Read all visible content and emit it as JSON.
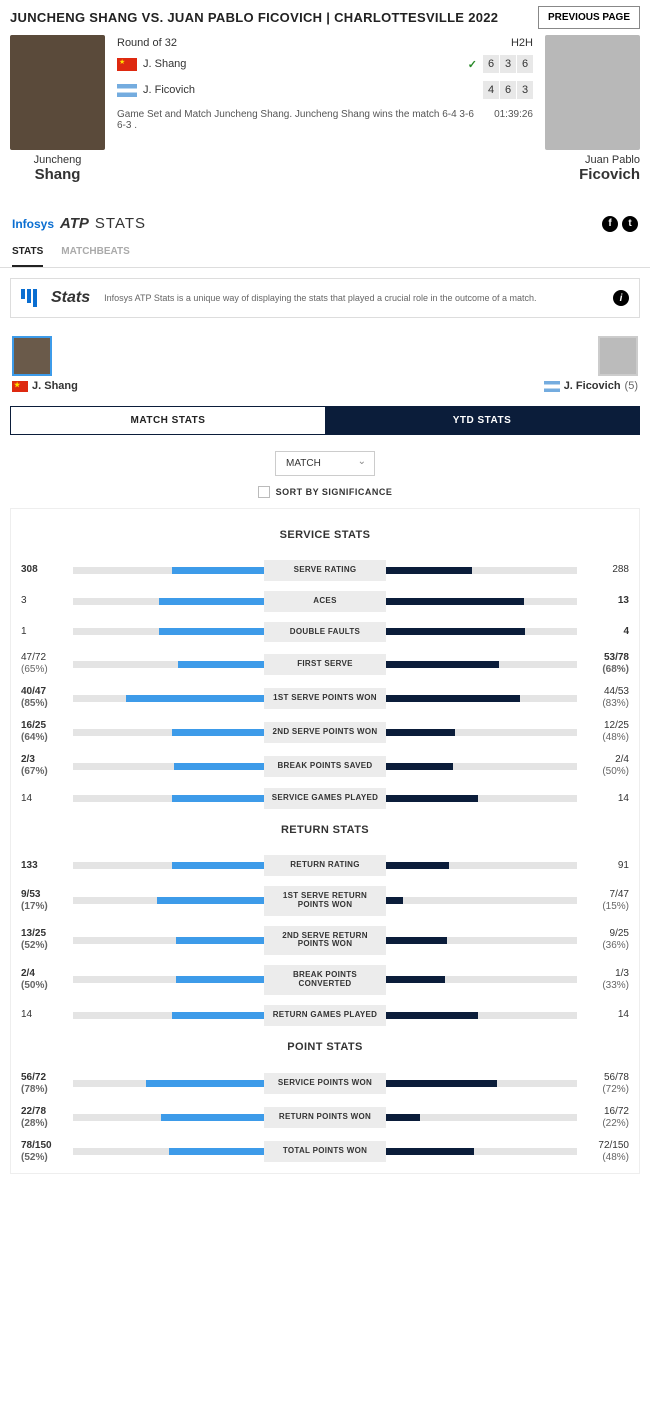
{
  "header": {
    "title": "JUNCHENG SHANG VS. JUAN PABLO FICOVICH | CHARLOTTESVILLE 2022",
    "prev_button": "PREVIOUS PAGE"
  },
  "players": {
    "p1": {
      "first": "Juncheng",
      "last": "Shang",
      "short": "J. Shang",
      "flag": "cn"
    },
    "p2": {
      "first": "Juan Pablo",
      "last": "Ficovich",
      "short": "J. Ficovich",
      "flag": "ar",
      "seed": "(5)"
    }
  },
  "scoreboard": {
    "round": "Round of 32",
    "h2h": "H2H",
    "p1_sets": [
      "6",
      "3",
      "6"
    ],
    "p2_sets": [
      "4",
      "6",
      "3"
    ],
    "winner": "p1",
    "message": "Game Set and Match Juncheng Shang. Juncheng Shang wins the match 6-4 3-6 6-3 .",
    "duration": "01:39:26"
  },
  "brand": {
    "infosys": "Infosys",
    "atp": "ATP",
    "stats": "STATS"
  },
  "tabs": {
    "stats": "STATS",
    "matchbeats": "MATCHBEATS"
  },
  "banner": {
    "logo": "Stats",
    "text": "Infosys ATP Stats is a unique way of displaying the stats that played a crucial role in the outcome of a match."
  },
  "toggle": {
    "match": "MATCH STATS",
    "ytd": "YTD STATS"
  },
  "controls": {
    "dropdown": "MATCH",
    "sort": "SORT BY SIGNIFICANCE"
  },
  "colors": {
    "p1_bar": "#3d9be9",
    "p2_bar": "#0b1d3a",
    "track": "#e4e4e4",
    "label_bg": "#ececec"
  },
  "groups": [
    {
      "title": "SERVICE STATS",
      "rows": [
        {
          "label": "SERVE RATING",
          "l_val": "308",
          "r_val": "288",
          "l_pct": 48,
          "r_pct": 45,
          "bold": "l"
        },
        {
          "label": "ACES",
          "l_val": "3",
          "r_val": "13",
          "l_pct": 55,
          "r_pct": 72,
          "bold": "r"
        },
        {
          "label": "DOUBLE FAULTS",
          "l_val": "1",
          "r_val": "4",
          "l_pct": 55,
          "r_pct": 73,
          "bold": "r"
        },
        {
          "label": "FIRST SERVE",
          "l_val": "47/72",
          "l_sub": "(65%)",
          "r_val": "53/78",
          "r_sub": "(68%)",
          "l_pct": 45,
          "r_pct": 59,
          "bold": "r"
        },
        {
          "label": "1ST SERVE POINTS WON",
          "l_val": "40/47",
          "l_sub": "(85%)",
          "r_val": "44/53",
          "r_sub": "(83%)",
          "l_pct": 72,
          "r_pct": 70,
          "bold": "l"
        },
        {
          "label": "2ND SERVE POINTS WON",
          "l_val": "16/25",
          "l_sub": "(64%)",
          "r_val": "12/25",
          "r_sub": "(48%)",
          "l_pct": 48,
          "r_pct": 36,
          "bold": "l"
        },
        {
          "label": "BREAK POINTS SAVED",
          "l_val": "2/3",
          "l_sub": "(67%)",
          "r_val": "2/4",
          "r_sub": "(50%)",
          "l_pct": 47,
          "r_pct": 35,
          "bold": "l"
        },
        {
          "label": "SERVICE GAMES PLAYED",
          "l_val": "14",
          "r_val": "14",
          "l_pct": 48,
          "r_pct": 48
        }
      ]
    },
    {
      "title": "RETURN STATS",
      "rows": [
        {
          "label": "RETURN RATING",
          "l_val": "133",
          "r_val": "91",
          "l_pct": 48,
          "r_pct": 33,
          "bold": "l"
        },
        {
          "label": "1ST SERVE RETURN POINTS WON",
          "l_val": "9/53",
          "l_sub": "(17%)",
          "r_val": "7/47",
          "r_sub": "(15%)",
          "l_pct": 56,
          "r_pct": 9,
          "bold": "l"
        },
        {
          "label": "2ND SERVE RETURN POINTS WON",
          "l_val": "13/25",
          "l_sub": "(52%)",
          "r_val": "9/25",
          "r_sub": "(36%)",
          "l_pct": 46,
          "r_pct": 32,
          "bold": "l"
        },
        {
          "label": "BREAK POINTS CONVERTED",
          "l_val": "2/4",
          "l_sub": "(50%)",
          "r_val": "1/3",
          "r_sub": "(33%)",
          "l_pct": 46,
          "r_pct": 31,
          "bold": "l"
        },
        {
          "label": "RETURN GAMES PLAYED",
          "l_val": "14",
          "r_val": "14",
          "l_pct": 48,
          "r_pct": 48
        }
      ]
    },
    {
      "title": "POINT STATS",
      "rows": [
        {
          "label": "SERVICE POINTS WON",
          "l_val": "56/72",
          "l_sub": "(78%)",
          "r_val": "56/78",
          "r_sub": "(72%)",
          "l_pct": 62,
          "r_pct": 58,
          "bold": "l"
        },
        {
          "label": "RETURN POINTS WON",
          "l_val": "22/78",
          "l_sub": "(28%)",
          "r_val": "16/72",
          "r_sub": "(22%)",
          "l_pct": 54,
          "r_pct": 18,
          "bold": "l"
        },
        {
          "label": "TOTAL POINTS WON",
          "l_val": "78/150",
          "l_sub": "(52%)",
          "r_val": "72/150",
          "r_sub": "(48%)",
          "l_pct": 50,
          "r_pct": 46,
          "bold": "l"
        }
      ]
    }
  ]
}
